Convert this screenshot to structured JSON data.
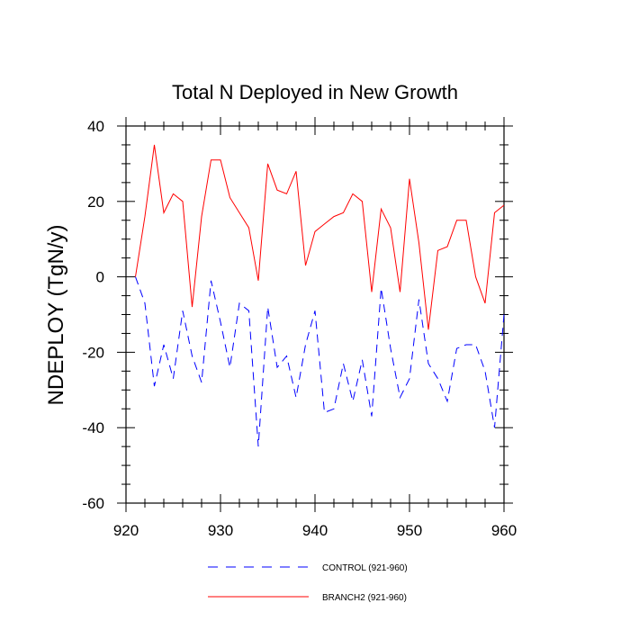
{
  "chart_data": {
    "type": "line",
    "title": "Total N Deployed in New Growth",
    "xlabel": "",
    "ylabel": "NDEPLOY  (TgN/y)",
    "xlim": [
      921,
      960
    ],
    "ylim": [
      -60,
      40
    ],
    "xticks": [
      920,
      930,
      940,
      950,
      960
    ],
    "yticks": [
      40,
      20,
      0,
      -20,
      -40,
      -60
    ],
    "x": [
      921,
      922,
      923,
      924,
      925,
      926,
      927,
      928,
      929,
      930,
      931,
      932,
      933,
      934,
      935,
      936,
      937,
      938,
      939,
      940,
      941,
      942,
      943,
      944,
      945,
      946,
      947,
      948,
      949,
      950,
      951,
      952,
      953,
      954,
      955,
      956,
      957,
      958,
      959,
      960
    ],
    "series": [
      {
        "name": "CONTROL (921-960)",
        "color": "#0000ff",
        "dash": "dashed",
        "values": [
          0,
          -7,
          -29,
          -18,
          -27,
          -9,
          -21,
          -28,
          -1,
          -12,
          -24,
          -7,
          -9,
          -45,
          -8,
          -24,
          -21,
          -32,
          -18,
          -9,
          -36,
          -35,
          -23,
          -33,
          -22,
          -37,
          -3,
          -19,
          -32,
          -27,
          -6,
          -23,
          -27,
          -33,
          -19,
          -18,
          -18,
          -25,
          -40,
          -10
        ]
      },
      {
        "name": "BRANCH2 (921-960)",
        "color": "#ff0000",
        "dash": "solid",
        "values": [
          0,
          16,
          35,
          17,
          22,
          20,
          -8,
          16,
          31,
          31,
          21,
          17,
          13,
          -1,
          30,
          23,
          22,
          28,
          3,
          12,
          14,
          16,
          17,
          22,
          20,
          -4,
          18,
          13,
          -4,
          26,
          9,
          -14,
          7,
          8,
          15,
          15,
          0,
          -7,
          17,
          19
        ]
      }
    ],
    "legend_position": "bottom-center"
  }
}
